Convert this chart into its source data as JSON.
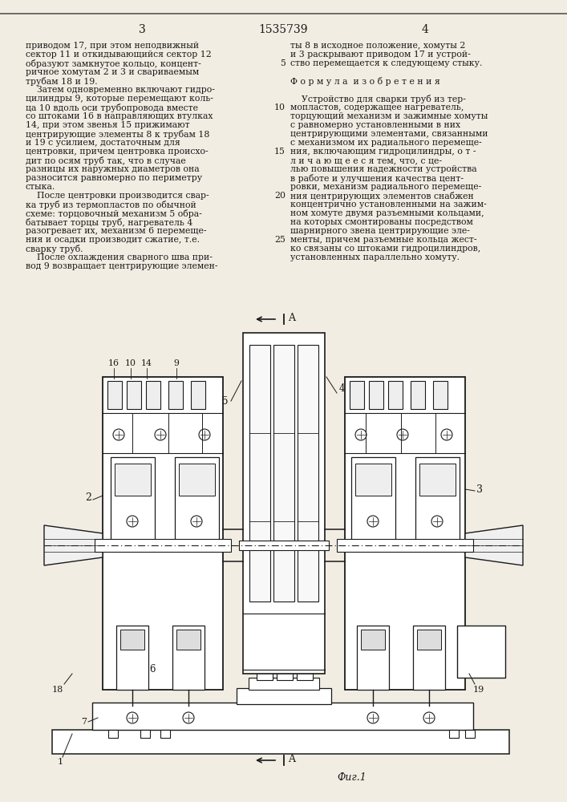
{
  "page_number_left": "3",
  "page_number_right": "4",
  "patent_number": "1535739",
  "bg_color": "#f2ede3",
  "text_color": "#1a1a1a",
  "left_column_text": [
    "приводом 17, при этом неподвижный",
    "сектор 11 и откидывающийся сектор 12",
    "образуют замкнутое кольцо, концент-",
    "ричное хомутам 2 и 3 и свариваемым",
    "трубам 18 и 19.",
    "    Затем одновременно включают гидро-",
    "цилиндры 9, которые перемещают коль-",
    "ца 10 вдоль оси трубопровода вместе",
    "со штоками 16 в направляющих втулках",
    "14, при этом звенья 15 прижимают",
    "центрирующие элементы 8 к трубам 18",
    "и 19 с усилием, достаточным для",
    "центровки, причем центровка происхо-",
    "дит по осям труб так, что в случае",
    "разницы их наружных диаметров она",
    "разносится равномерно по периметру",
    "стыка.",
    "    После центровки производится свар-",
    "ка труб из термопластов по обычной",
    "схеме: торцовочный механизм 5 обра-",
    "батывает торцы труб, нагреватель 4",
    "разогревает их, механизм 6 перемеще-",
    "ния и осадки производит сжатие, т.е.",
    "сварку труб.",
    "    После охлаждения сварного шва при-",
    "вод 9 возвращает центрирующие элемен-"
  ],
  "right_column_text": [
    "ты 8 в исходное положение, хомуты 2",
    "и 3 раскрывают приводом 17 и устрой-",
    "ство перемещается к следующему стыку.",
    "",
    "Ф о р м у л а  и з о б р е т е н и я",
    "",
    "    Устройство для сварки труб из тер-",
    "мопластов, содержащее нагреватель,",
    "торцующий механизм и зажимные хомуты",
    "с равномерно установленными в них",
    "центрирующими элементами, связанными",
    "с механизмом их радиального перемеще-",
    "ния, включающим гидроцилиндры, о т -",
    "л и ч а ю щ е е с я тем, что, с це-",
    "лью повышения надежности устройства",
    "в работе и улучшения качества цент-",
    "ровки, механизм радиального перемеще-",
    "ния центрирующих элементов снабжен",
    "концентрично установленными на зажим-",
    "ном хомуте двумя разъемными кольцами,",
    "на которых смонтированы посредством",
    "шарнирного звена центрирующие эле-",
    "менты, причем разъемные кольца жест-",
    "ко связаны со штоками гидроцилиндров,",
    "установленных параллельно хомуту."
  ],
  "fig_label": "Фиг.1"
}
